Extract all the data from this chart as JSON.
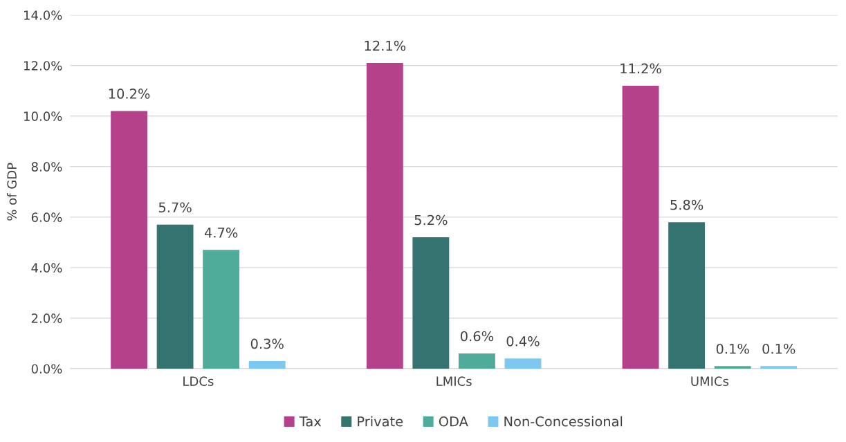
{
  "chart_data": {
    "type": "bar",
    "ylabel": "% of GDP",
    "categories": [
      "LDCs",
      "LMICs",
      "UMICs"
    ],
    "series": [
      {
        "name": "Tax",
        "color": "#b5418a",
        "values": [
          10.2,
          12.1,
          11.2
        ],
        "value_labels": [
          "10.2%",
          "12.1%",
          "11.2%"
        ]
      },
      {
        "name": "Private",
        "color": "#357370",
        "values": [
          5.7,
          5.2,
          5.8
        ],
        "value_labels": [
          "5.7%",
          "5.2%",
          "5.8%"
        ]
      },
      {
        "name": "ODA",
        "color": "#4fac9a",
        "values": [
          4.7,
          0.6,
          0.1
        ],
        "value_labels": [
          "4.7%",
          "0.6%",
          "0.1%"
        ]
      },
      {
        "name": "Non-Concessional",
        "color": "#7cc8f0",
        "values": [
          0.3,
          0.4,
          0.1
        ],
        "value_labels": [
          "0.3%",
          "0.4%",
          "0.1%"
        ]
      }
    ],
    "ylim": [
      0,
      14
    ],
    "yticks": [
      {
        "value": 0,
        "label": "0.0%"
      },
      {
        "value": 2,
        "label": "2.0%"
      },
      {
        "value": 4,
        "label": "4.0%"
      },
      {
        "value": 6,
        "label": "6.0%"
      },
      {
        "value": 8,
        "label": "8.0%"
      },
      {
        "value": 10,
        "label": "10.0%"
      },
      {
        "value": 12,
        "label": "12.0%"
      },
      {
        "value": 14,
        "label": "14.0%"
      }
    ],
    "grid": "y",
    "legend": "bottom"
  }
}
